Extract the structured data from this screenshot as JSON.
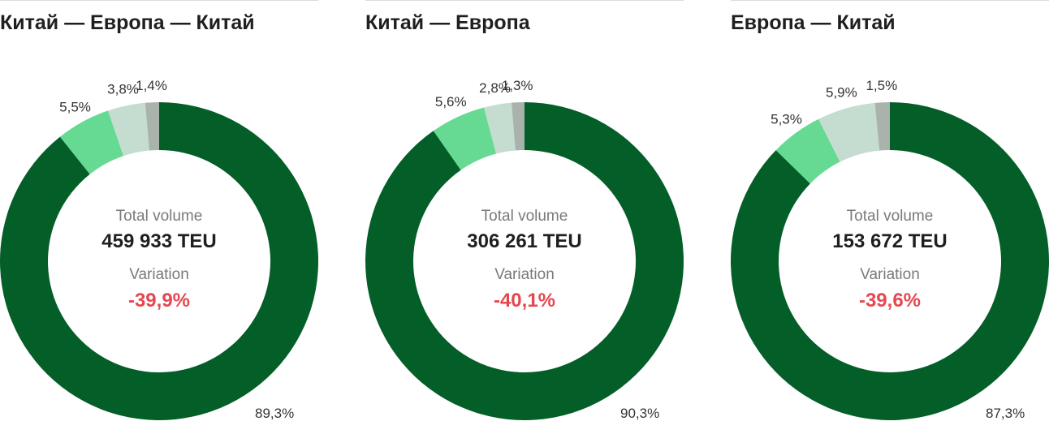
{
  "colors": {
    "main": "#035e27",
    "light_green": "#66da92",
    "pale_green": "#c5ddd1",
    "gray": "#a9b3ac",
    "variation": "#e5474f"
  },
  "labels": {
    "total_volume": "Total volume",
    "variation": "Variation"
  },
  "chart_data": [
    {
      "type": "pie",
      "title": "Китай — Европа — Китай",
      "total_volume": "459 933 TEU",
      "variation": "-39,9%",
      "slices": [
        {
          "value": 89.3,
          "label": "89,3%",
          "color": "main"
        },
        {
          "value": 5.5,
          "label": "5,5%",
          "color": "light_green"
        },
        {
          "value": 3.8,
          "label": "3,8%",
          "color": "pale_green"
        },
        {
          "value": 1.4,
          "label": "1,4%",
          "color": "gray"
        }
      ]
    },
    {
      "type": "pie",
      "title": "Китай — Европа",
      "total_volume": "306 261 TEU",
      "variation": "-40,1%",
      "slices": [
        {
          "value": 90.3,
          "label": "90,3%",
          "color": "main"
        },
        {
          "value": 5.6,
          "label": "5,6%",
          "color": "light_green"
        },
        {
          "value": 2.8,
          "label": "2,8%",
          "color": "pale_green"
        },
        {
          "value": 1.3,
          "label": "1,3%",
          "color": "gray"
        }
      ]
    },
    {
      "type": "pie",
      "title": "Европа — Китай",
      "total_volume": "153 672 TEU",
      "variation": "-39,6%",
      "slices": [
        {
          "value": 87.3,
          "label": "87,3%",
          "color": "main"
        },
        {
          "value": 5.3,
          "label": "5,3%",
          "color": "light_green"
        },
        {
          "value": 5.9,
          "label": "5,9%",
          "color": "pale_green"
        },
        {
          "value": 1.5,
          "label": "1,5%",
          "color": "gray"
        }
      ]
    }
  ]
}
